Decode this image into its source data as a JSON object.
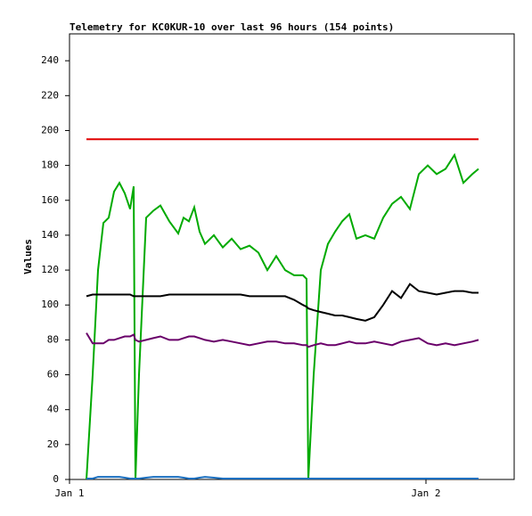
{
  "chart_data": {
    "type": "line",
    "title": "Telemetry for KC0KUR-10 over last 96 hours (154 points)",
    "ylabel": "Values",
    "x": [
      1.14,
      1.56,
      1.92,
      2.28,
      2.64,
      3.0,
      3.36,
      3.72,
      4.08,
      4.32,
      4.44,
      4.68,
      5.16,
      5.64,
      6.12,
      6.72,
      7.32,
      7.68,
      8.04,
      8.4,
      8.76,
      9.12,
      9.72,
      10.32,
      10.92,
      11.52,
      12.12,
      12.72,
      13.32,
      13.92,
      14.52,
      15.12,
      15.72,
      15.96,
      16.08,
      16.44,
      16.92,
      17.4,
      17.88,
      18.36,
      18.84,
      19.32,
      19.92,
      20.52,
      21.12,
      21.72,
      22.32,
      22.92,
      23.52,
      24.12,
      24.72,
      25.32,
      25.92,
      26.52,
      27.12,
      27.54
    ],
    "series": [
      {
        "color": "#e00000",
        "values": [
          195,
          195,
          195,
          195,
          195,
          195,
          195,
          195,
          195,
          195,
          195,
          195,
          195,
          195,
          195,
          195,
          195,
          195,
          195,
          195,
          195,
          195,
          195,
          195,
          195,
          195,
          195,
          195,
          195,
          195,
          195,
          195,
          195,
          195,
          195,
          195,
          195,
          195,
          195,
          195,
          195,
          195,
          195,
          195,
          195,
          195,
          195,
          195,
          195,
          195,
          195,
          195,
          195,
          195,
          195,
          195
        ]
      },
      {
        "color": "#00aa00",
        "values": [
          0,
          60,
          120,
          147,
          150,
          165,
          170,
          164,
          155,
          168,
          0,
          60,
          150,
          154,
          157,
          148,
          141,
          150,
          148,
          156,
          142,
          135,
          140,
          133,
          138,
          132,
          134,
          130,
          120,
          128,
          120,
          117,
          117,
          115,
          0,
          60,
          120,
          135,
          142,
          148,
          152,
          138,
          140,
          138,
          150,
          158,
          162,
          155,
          175,
          180,
          175,
          178,
          186,
          170,
          175,
          178
        ]
      },
      {
        "color": "#000000",
        "values": [
          105,
          106,
          106,
          106,
          106,
          106,
          106,
          106,
          106,
          105,
          105,
          105,
          105,
          105,
          105,
          106,
          106,
          106,
          106,
          106,
          106,
          106,
          106,
          106,
          106,
          106,
          105,
          105,
          105,
          105,
          105,
          103,
          100,
          99,
          98,
          97,
          96,
          95,
          94,
          94,
          93,
          92,
          91,
          93,
          100,
          108,
          104,
          112,
          108,
          107,
          106,
          107,
          108,
          108,
          107,
          107
        ]
      },
      {
        "color": "#6a006a",
        "values": [
          84,
          78,
          78,
          78,
          80,
          80,
          81,
          82,
          82,
          83,
          80,
          79,
          80,
          81,
          82,
          80,
          80,
          81,
          82,
          82,
          81,
          80,
          79,
          80,
          79,
          78,
          77,
          78,
          79,
          79,
          78,
          78,
          77,
          77,
          76,
          77,
          78,
          77,
          77,
          78,
          79,
          78,
          78,
          79,
          78,
          77,
          79,
          80,
          81,
          78,
          77,
          78,
          77,
          78,
          79,
          80
        ]
      },
      {
        "color": "#1a6fc0",
        "values": [
          0.5,
          0.5,
          1.5,
          1.5,
          1.5,
          1.5,
          1.5,
          1,
          0.5,
          0.5,
          0.5,
          0.5,
          1,
          1.5,
          1.5,
          1.5,
          1.5,
          1,
          0.5,
          0.5,
          1,
          1.5,
          1,
          0.5,
          0.5,
          0.5,
          0.5,
          0.5,
          0.5,
          0.5,
          0.5,
          0.5,
          0.5,
          0.5,
          0.5,
          0.5,
          0.5,
          0.5,
          0.5,
          0.5,
          0.5,
          0.5,
          0.5,
          0.5,
          0.5,
          0.5,
          0.5,
          0.5,
          0.5,
          0.5,
          0.5,
          0.5,
          0.5,
          0.5,
          0.5,
          0.5
        ]
      }
    ],
    "xlim": [
      0,
      29.94
    ],
    "xticks": [
      {
        "value": 0,
        "label": "Jan 1"
      },
      {
        "value": 24,
        "label": "Jan 2"
      }
    ],
    "ylim": [
      0,
      255.4
    ],
    "yticks": [
      0,
      20,
      40,
      60,
      80,
      100,
      120,
      140,
      160,
      180,
      200,
      220,
      240
    ]
  }
}
